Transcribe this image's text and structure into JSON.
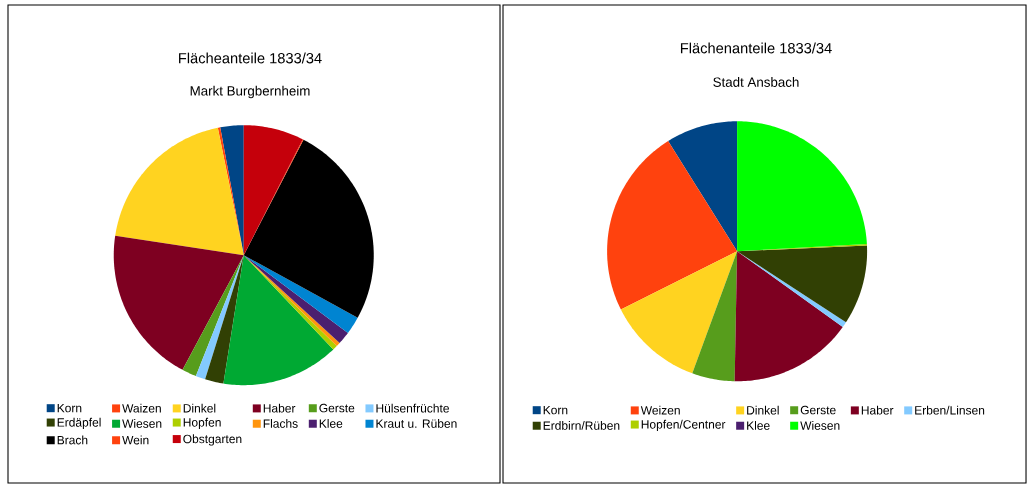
{
  "chart_data": [
    {
      "type": "pie",
      "title": "Flächeanteile 1833/34",
      "subtitle": "Markt Burgbernheim",
      "legend": "bottom",
      "categories": [
        "Korn",
        "Waizen",
        "Dinkel",
        "Haber",
        "Gerste",
        "Hülsenfrüchte",
        "Erdäpfel",
        "Wiesen",
        "Hopfen",
        "Flachs",
        "Klee",
        "Kraut u. Rüben",
        "Brach",
        "Wein",
        "Obstgarten"
      ],
      "values": [
        2.9,
        0.3,
        19.4,
        19.6,
        1.8,
        1.2,
        2.3,
        14.6,
        0.6,
        0.5,
        1.6,
        2.2,
        25.4,
        0.1,
        7.5
      ],
      "colors": [
        "#004586",
        "#ff420e",
        "#ffd320",
        "#7e0021",
        "#579d1c",
        "#83caff",
        "#314004",
        "#00a933",
        "#aecf00",
        "#ff950e",
        "#4b1f6f",
        "#0084d1",
        "#000000",
        "#ff420e",
        "#c5000b"
      ]
    },
    {
      "type": "pie",
      "title": "Flächenanteile 1833/34",
      "subtitle": "Stadt Ansbach",
      "legend": "bottom",
      "categories": [
        "Korn",
        "Weizen",
        "Dinkel",
        "Gerste",
        "Haber",
        "Erben/Linsen",
        "Erdbirn/Rüben",
        "Hopfen/Centner",
        "Klee",
        "Wiesen"
      ],
      "values": [
        8.9,
        23.5,
        12.0,
        5.3,
        15.4,
        0.7,
        9.9,
        0.2,
        null,
        24.1
      ],
      "colors": [
        "#004586",
        "#ff420e",
        "#ffd320",
        "#579d1c",
        "#7e0021",
        "#83caff",
        "#314004",
        "#aecf00",
        "#4b1f6f",
        "#00ff00"
      ]
    }
  ]
}
